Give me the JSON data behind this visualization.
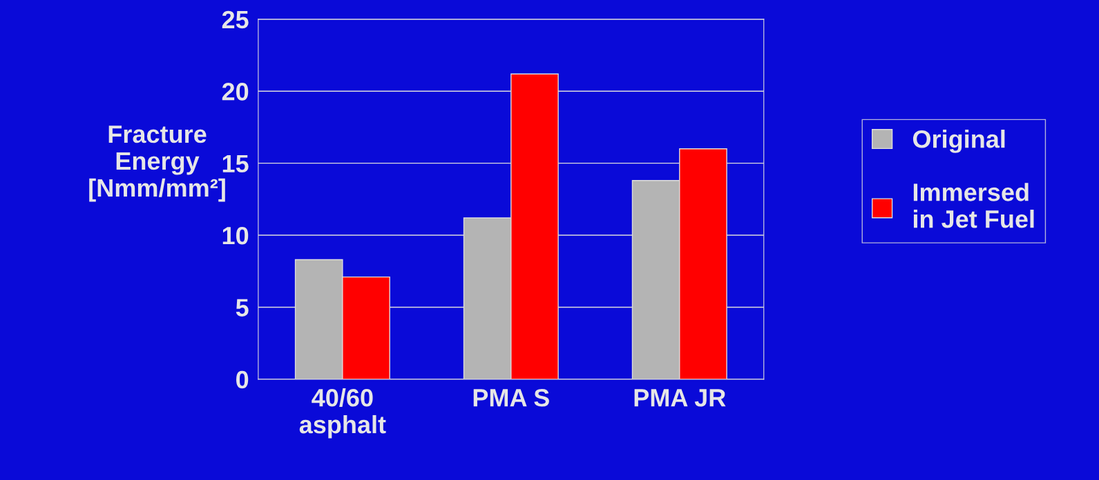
{
  "chart_data": {
    "type": "bar",
    "ylabel": "Fracture\nEnergy\n[Nmm/mm²]",
    "categories": [
      "40/60\nasphalt",
      "PMA S",
      "PMA JR"
    ],
    "series": [
      {
        "name": "Original",
        "color": "#b4b4b4",
        "values": [
          8.3,
          11.2,
          13.8
        ]
      },
      {
        "name": "Immersed\nin Jet Fuel",
        "color": "#ff0000",
        "values": [
          7.1,
          21.2,
          16.0
        ]
      }
    ],
    "ylim": [
      0,
      25
    ],
    "yticks": [
      0,
      5,
      10,
      15,
      20,
      25
    ],
    "grid": "y",
    "legend": "right"
  }
}
